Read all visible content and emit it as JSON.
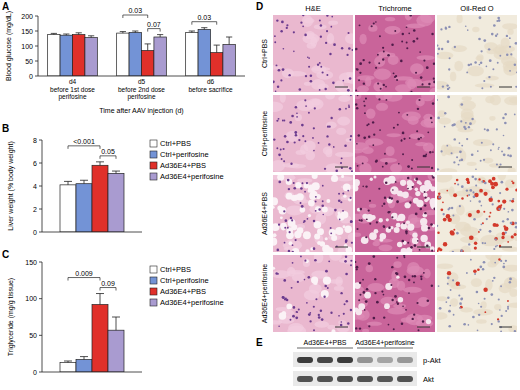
{
  "chart_data": [
    {
      "panel": "A",
      "type": "bar",
      "ylabel": "Blood glucose (mg/dL)",
      "xlabel": "Time after AAV injection (d)",
      "categories": [
        "d4\nbefore 1st dose\nperifosine",
        "d5\nbefore 2nd dose\nperifosine",
        "d6\nbefore sacrifice"
      ],
      "series": [
        {
          "color": "#ffffff",
          "values": [
            138,
            143,
            145
          ],
          "errors": [
            4,
            5,
            5
          ]
        },
        {
          "color": "#7393d6",
          "values": [
            136,
            145,
            155
          ],
          "errors": [
            4,
            5,
            6
          ]
        },
        {
          "color": "#e0302a",
          "values": [
            138,
            85,
            78
          ],
          "errors": [
            6,
            22,
            25
          ]
        },
        {
          "color": "#a99bd0",
          "values": [
            128,
            130,
            105
          ],
          "errors": [
            6,
            8,
            25
          ]
        }
      ],
      "ylim": [
        0,
        200
      ],
      "yticks": [
        0,
        50,
        100,
        150,
        200
      ],
      "annotations": [
        "0.03",
        "0.07",
        "0.03"
      ]
    },
    {
      "panel": "B",
      "type": "bar",
      "ylabel": "Liver weight (% body weight)",
      "categories": [
        null
      ],
      "series": [
        {
          "name": "Ctrl+PBS",
          "color": "#ffffff",
          "values": [
            4.1
          ],
          "errors": [
            0.3
          ]
        },
        {
          "name": "Ctrl+perifosine",
          "color": "#7393d6",
          "values": [
            4.2
          ],
          "errors": [
            0.3
          ]
        },
        {
          "name": "Ad36E4+PBS",
          "color": "#e0302a",
          "values": [
            5.8
          ],
          "errors": [
            0.3
          ]
        },
        {
          "name": "Ad36E4+perifosine",
          "color": "#a99bd0",
          "values": [
            5.1
          ],
          "errors": [
            0.2
          ]
        }
      ],
      "ylim": [
        0,
        8
      ],
      "yticks": [
        0,
        2,
        4,
        6,
        8
      ],
      "legend": "right",
      "annotations": [
        "<0.001",
        "0.05"
      ]
    },
    {
      "panel": "C",
      "type": "bar",
      "ylabel": "Triglyceride (mg/g tissue)",
      "categories": [
        null
      ],
      "series": [
        {
          "name": "Ctrl+PBS",
          "color": "#ffffff",
          "values": [
            13
          ],
          "errors": [
            2
          ]
        },
        {
          "name": "Ctrl+perifosine",
          "color": "#7393d6",
          "values": [
            17
          ],
          "errors": [
            4
          ]
        },
        {
          "name": "Ad36E4+PBS",
          "color": "#e0302a",
          "values": [
            92
          ],
          "errors": [
            15
          ]
        },
        {
          "name": "Ad36E4+perifosine",
          "color": "#a99bd0",
          "values": [
            57
          ],
          "errors": [
            18
          ]
        }
      ],
      "ylim": [
        0,
        150
      ],
      "yticks": [
        0,
        50,
        100,
        150
      ],
      "legend": "right",
      "annotations": [
        "0.009",
        "0.09"
      ]
    }
  ],
  "histology": {
    "panel": "D",
    "columns": [
      "H&E",
      "Trichrome",
      "Oil-Red O"
    ],
    "rows": [
      "Ctrl+PBS",
      "Ctrl+perifosine",
      "Ad36E4+PBS",
      "Ad36E4+perifosine"
    ]
  },
  "blot": {
    "panel": "E",
    "groups": [
      {
        "label": "Ad36E4+PBS",
        "lanes": 3
      },
      {
        "label": "Ad36E4+perifosine",
        "lanes": 3
      }
    ],
    "rows": [
      {
        "label": "p-Akt",
        "intensity": [
          0.9,
          0.85,
          0.9,
          0.5,
          0.42,
          0.48
        ]
      },
      {
        "label": "Akt",
        "intensity": [
          0.8,
          0.8,
          0.82,
          0.8,
          0.78,
          0.8
        ]
      }
    ]
  }
}
